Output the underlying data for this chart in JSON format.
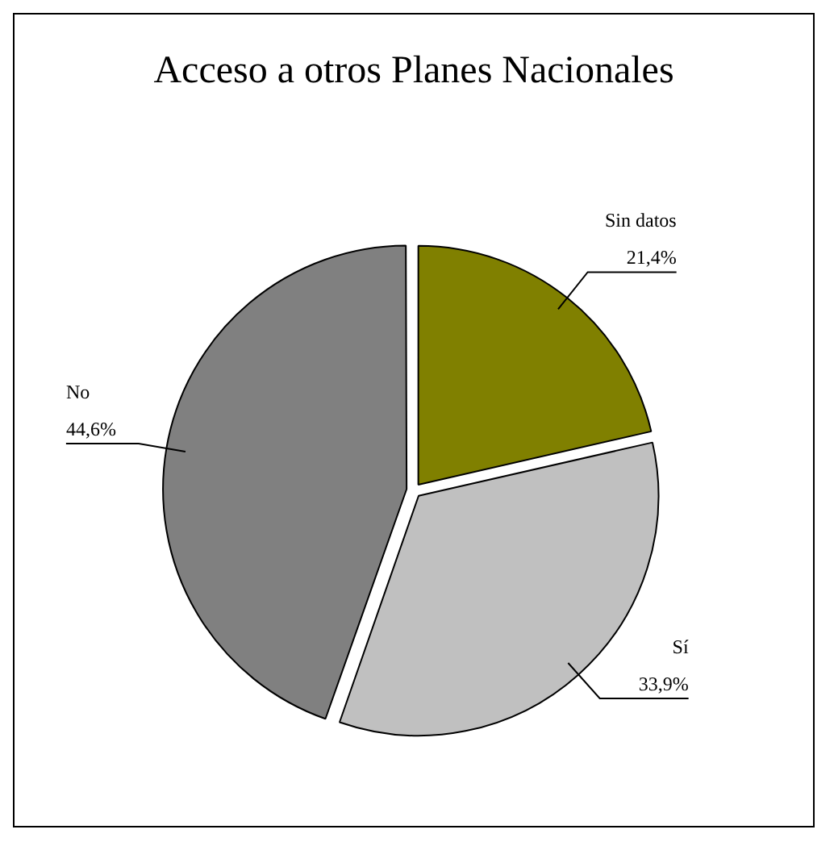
{
  "chart_data": {
    "type": "pie",
    "title": "Acceso a otros Planes Nacionales",
    "categories": [
      "Sin datos",
      "Sí",
      "No"
    ],
    "values": [
      21.4,
      33.9,
      44.6
    ],
    "value_labels": [
      "21,4%",
      "33,9%",
      "44,6%"
    ],
    "colors": [
      "#808000",
      "#c0c0c0",
      "#808080"
    ],
    "legend": false
  }
}
